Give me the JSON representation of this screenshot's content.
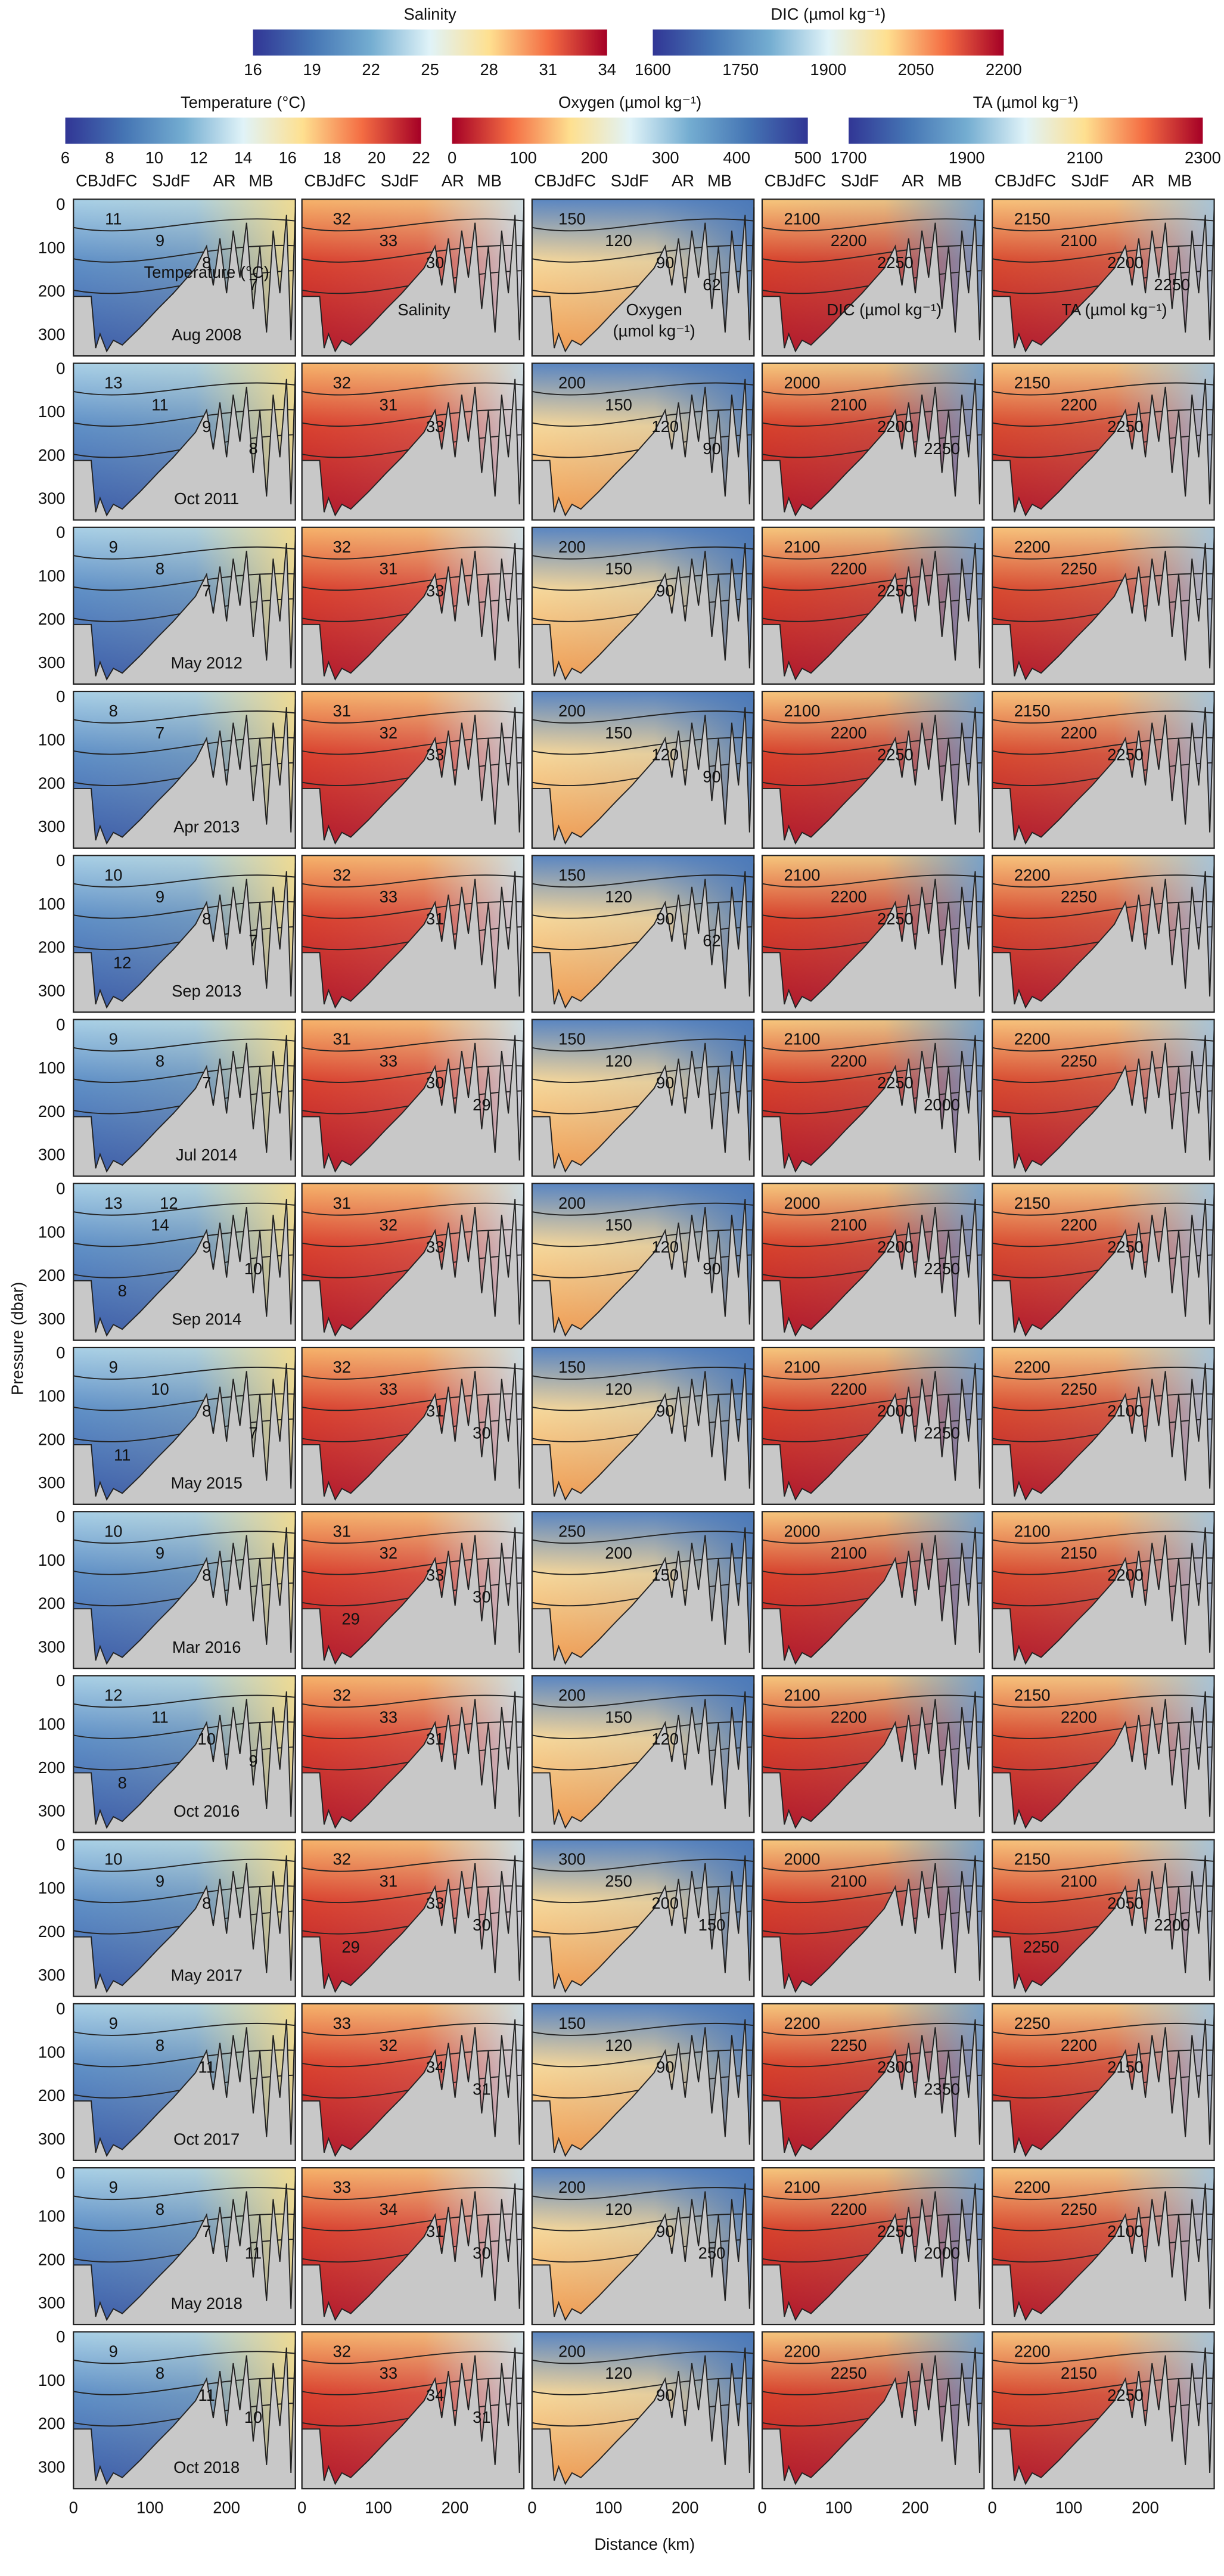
{
  "colorbars": [
    {
      "title": "Salinity",
      "ticks": [
        "16",
        "19",
        "22",
        "25",
        "28",
        "31",
        "34"
      ],
      "colors": [
        "#313695",
        "#4575b4",
        "#74add1",
        "#e0f3f8",
        "#fee090",
        "#f46d43",
        "#a50026"
      ]
    },
    {
      "title": "DIC (µmol kg⁻¹)",
      "ticks": [
        "1600",
        "1750",
        "1900",
        "2050",
        "2200"
      ],
      "colors": [
        "#313695",
        "#4575b4",
        "#74add1",
        "#e0f3f8",
        "#fee090",
        "#f46d43",
        "#a50026"
      ]
    },
    {
      "title": "Temperature (°C)",
      "ticks": [
        "6",
        "8",
        "10",
        "12",
        "14",
        "16",
        "18",
        "20",
        "22"
      ],
      "colors": [
        "#313695",
        "#4575b4",
        "#74add1",
        "#e0f3f8",
        "#fee090",
        "#f46d43",
        "#a50026"
      ]
    },
    {
      "title": "Oxygen (µmol kg⁻¹)",
      "ticks": [
        "0",
        "100",
        "200",
        "300",
        "400",
        "500"
      ],
      "colors": [
        "#a50026",
        "#f46d43",
        "#fee090",
        "#e0f3f8",
        "#74add1",
        "#4575b4",
        "#313695"
      ]
    },
    {
      "title": "TA (µmol kg⁻¹)",
      "ticks": [
        "1700",
        "1900",
        "2100",
        "2300"
      ],
      "colors": [
        "#313695",
        "#4575b4",
        "#74add1",
        "#e0f3f8",
        "#fee090",
        "#f46d43",
        "#a50026"
      ]
    }
  ],
  "column_header": [
    "CB",
    "JdFC",
    "SJdF",
    "AR",
    "MB"
  ],
  "panel_titles": [
    [
      "Temperature (°C)"
    ],
    [
      "Salinity"
    ],
    [
      "Oxygen",
      "(µmol kg⁻¹)"
    ],
    [
      "DIC (µmol kg⁻¹)"
    ],
    [
      "TA (µmol kg⁻¹)"
    ]
  ],
  "rows": [
    {
      "label": "Aug 2008",
      "contours": [
        [
          "11",
          "9",
          "8",
          "7"
        ],
        [
          "32",
          "33",
          "30"
        ],
        [
          "150",
          "120",
          "90",
          "62"
        ],
        [
          "2100",
          "2200",
          "2250"
        ],
        [
          "2150",
          "2100",
          "2200",
          "2250"
        ]
      ]
    },
    {
      "label": "Oct 2011",
      "contours": [
        [
          "13",
          "11",
          "9",
          "8"
        ],
        [
          "32",
          "31",
          "33"
        ],
        [
          "200",
          "150",
          "120",
          "90"
        ],
        [
          "2000",
          "2100",
          "2200",
          "2250"
        ],
        [
          "2150",
          "2200",
          "2250"
        ]
      ]
    },
    {
      "label": "May 2012",
      "contours": [
        [
          "9",
          "8",
          "7"
        ],
        [
          "32",
          "31",
          "33"
        ],
        [
          "200",
          "150",
          "90"
        ],
        [
          "2100",
          "2200",
          "2250"
        ],
        [
          "2200",
          "2250"
        ]
      ]
    },
    {
      "label": "Apr 2013",
      "contours": [
        [
          "8",
          "7"
        ],
        [
          "31",
          "32",
          "33"
        ],
        [
          "200",
          "150",
          "120",
          "90"
        ],
        [
          "2100",
          "2200",
          "2250"
        ],
        [
          "2150",
          "2200",
          "2250"
        ]
      ]
    },
    {
      "label": "Sep 2013",
      "contours": [
        [
          "10",
          "9",
          "8",
          "7",
          "12"
        ],
        [
          "32",
          "33",
          "31"
        ],
        [
          "150",
          "120",
          "90",
          "62"
        ],
        [
          "2100",
          "2200",
          "2250"
        ],
        [
          "2200",
          "2250"
        ]
      ]
    },
    {
      "label": "Jul 2014",
      "contours": [
        [
          "9",
          "8",
          "7"
        ],
        [
          "31",
          "33",
          "30",
          "29"
        ],
        [
          "150",
          "120",
          "90"
        ],
        [
          "2100",
          "2200",
          "2250",
          "2000"
        ],
        [
          "2200",
          "2250"
        ]
      ]
    },
    {
      "label": "Sep 2014",
      "contours": [
        [
          "13",
          "14",
          "9",
          "10",
          "8",
          "12"
        ],
        [
          "31",
          "32",
          "33"
        ],
        [
          "200",
          "150",
          "120",
          "90"
        ],
        [
          "2000",
          "2100",
          "2200",
          "2250"
        ],
        [
          "2150",
          "2200",
          "2250"
        ]
      ]
    },
    {
      "label": "May 2015",
      "contours": [
        [
          "9",
          "10",
          "8",
          "7",
          "11"
        ],
        [
          "32",
          "33",
          "31",
          "30"
        ],
        [
          "150",
          "120",
          "90"
        ],
        [
          "2100",
          "2200",
          "2000",
          "2250"
        ],
        [
          "2200",
          "2250",
          "2100"
        ]
      ]
    },
    {
      "label": "Mar 2016",
      "contours": [
        [
          "10",
          "9",
          "8"
        ],
        [
          "31",
          "32",
          "33",
          "30",
          "29"
        ],
        [
          "250",
          "200",
          "150"
        ],
        [
          "2000",
          "2100"
        ],
        [
          "2100",
          "2150",
          "2200"
        ]
      ]
    },
    {
      "label": "Oct 2016",
      "contours": [
        [
          "12",
          "11",
          "10",
          "9",
          "8"
        ],
        [
          "32",
          "33",
          "31"
        ],
        [
          "200",
          "150",
          "120"
        ],
        [
          "2100",
          "2200"
        ],
        [
          "2150",
          "2200"
        ]
      ]
    },
    {
      "label": "May 2017",
      "contours": [
        [
          "10",
          "9",
          "8"
        ],
        [
          "32",
          "31",
          "33",
          "30",
          "29"
        ],
        [
          "300",
          "250",
          "200",
          "150"
        ],
        [
          "2000",
          "2100"
        ],
        [
          "2150",
          "2100",
          "2050",
          "2200",
          "2250"
        ]
      ]
    },
    {
      "label": "Oct 2017",
      "contours": [
        [
          "9",
          "8",
          "11"
        ],
        [
          "33",
          "32",
          "34",
          "31"
        ],
        [
          "150",
          "120",
          "90"
        ],
        [
          "2200",
          "2250",
          "2300",
          "2350"
        ],
        [
          "2250",
          "2200",
          "2150"
        ]
      ]
    },
    {
      "label": "May 2018",
      "contours": [
        [
          "9",
          "8",
          "7",
          "11"
        ],
        [
          "33",
          "34",
          "31",
          "30"
        ],
        [
          "200",
          "120",
          "90",
          "250"
        ],
        [
          "2100",
          "2200",
          "2250",
          "2000"
        ],
        [
          "2200",
          "2250",
          "2100"
        ]
      ]
    },
    {
      "label": "Oct 2018",
      "contours": [
        [
          "9",
          "8",
          "11",
          "10"
        ],
        [
          "32",
          "33",
          "34",
          "31"
        ],
        [
          "200",
          "120",
          "90"
        ],
        [
          "2200",
          "2250"
        ],
        [
          "2200",
          "2150",
          "2250"
        ]
      ]
    }
  ],
  "y_ticks": [
    "0",
    "100",
    "200",
    "300"
  ],
  "x_ticks": [
    "0",
    "100",
    "200"
  ],
  "y_range": [
    0,
    350
  ],
  "x_range": [
    0,
    290
  ],
  "y_label": "Pressure (dbar)",
  "x_label": "Distance (km)"
}
